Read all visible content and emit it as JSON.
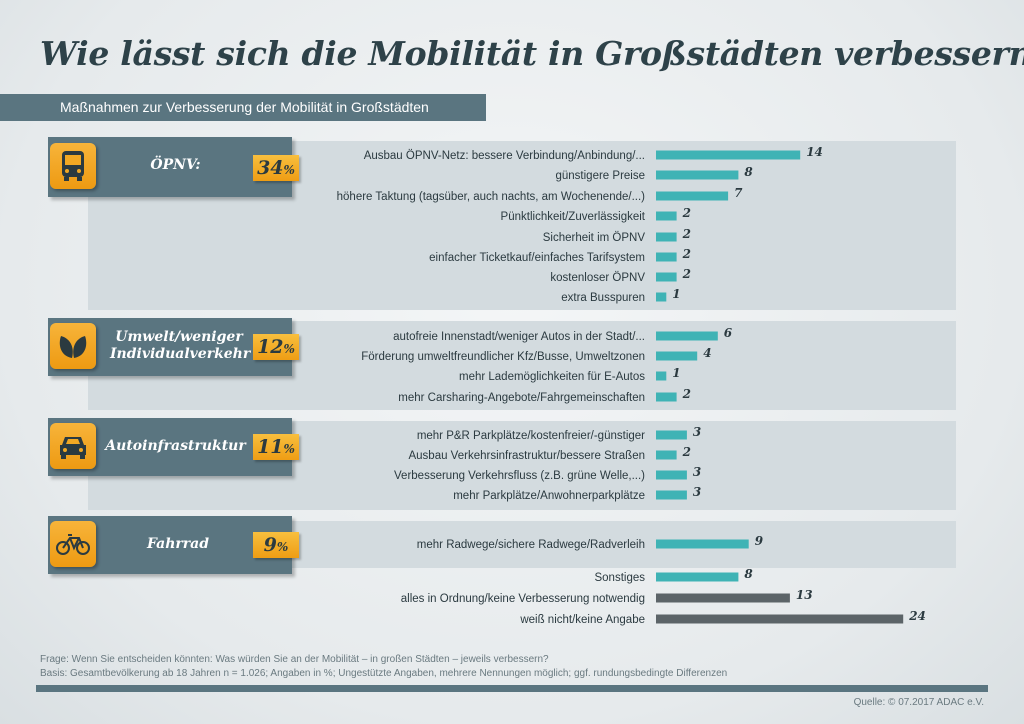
{
  "title": "Wie lässt sich die Mobilität in Großstädten verbessern?",
  "subtitle": "Maßnahmen zur Verbesserung der Mobilität in Großstädten",
  "categories": [
    {
      "label": "ÖPNV:",
      "percent": "34",
      "icon": "bus-icon"
    },
    {
      "label": "Umwelt/weniger Individualverkehr",
      "percent": "12",
      "icon": "leaves-icon"
    },
    {
      "label": "Autoinfrastruktur",
      "percent": "11",
      "icon": "car-icon"
    },
    {
      "label": "Fahrrad",
      "percent": "9",
      "icon": "bicycle-icon"
    }
  ],
  "percent_sign": "%",
  "colors": {
    "teal_bar": "#3fb3b5",
    "gray_bar": "#5c6468",
    "band": "#5a7580",
    "badge": "#f1a21d",
    "panel": "#d3dbdf"
  },
  "chart_data": {
    "type": "bar",
    "orientation": "horizontal",
    "title": "Wie lässt sich die Mobilität in Großstädten verbessern?",
    "subtitle": "Maßnahmen zur Verbesserung der Mobilität in Großstädten",
    "unit": "%",
    "bars": [
      {
        "label": "Ausbau ÖPNV-Netz: bessere Verbindung/Anbindung/...",
        "value": 14,
        "group": 0,
        "color": "teal"
      },
      {
        "label": "günstigere Preise",
        "value": 8,
        "group": 0,
        "color": "teal"
      },
      {
        "label": "höhere Taktung (tagsüber, auch nachts, am Wochenende/...)",
        "value": 7,
        "group": 0,
        "color": "teal"
      },
      {
        "label": "Pünktlichkeit/Zuverlässigkeit",
        "value": 2,
        "group": 0,
        "color": "teal"
      },
      {
        "label": "Sicherheit im ÖPNV",
        "value": 2,
        "group": 0,
        "color": "teal"
      },
      {
        "label": "einfacher Ticketkauf/einfaches Tarifsystem",
        "value": 2,
        "group": 0,
        "color": "teal"
      },
      {
        "label": "kostenloser ÖPNV",
        "value": 2,
        "group": 0,
        "color": "teal"
      },
      {
        "label": "extra Busspuren",
        "value": 1,
        "group": 0,
        "color": "teal"
      },
      {
        "label": "autofreie Innenstadt/weniger Autos in der Stadt/...",
        "value": 6,
        "group": 1,
        "color": "teal"
      },
      {
        "label": "Förderung umweltfreundlicher Kfz/Busse, Umweltzonen",
        "value": 4,
        "group": 1,
        "color": "teal"
      },
      {
        "label": "mehr Lademöglichkeiten für E-Autos",
        "value": 1,
        "group": 1,
        "color": "teal"
      },
      {
        "label": "mehr Carsharing-Angebote/Fahrgemeinschaften",
        "value": 2,
        "group": 1,
        "color": "teal"
      },
      {
        "label": "mehr P&R Parkplätze/kostenfreier/-günstiger",
        "value": 3,
        "group": 2,
        "color": "teal"
      },
      {
        "label": "Ausbau Verkehrsinfrastruktur/bessere Straßen",
        "value": 2,
        "group": 2,
        "color": "teal"
      },
      {
        "label": "Verbesserung Verkehrsfluss (z.B. grüne Welle,...)",
        "value": 3,
        "group": 2,
        "color": "teal"
      },
      {
        "label": "mehr Parkplätze/Anwohnerparkplätze",
        "value": 3,
        "group": 2,
        "color": "teal"
      },
      {
        "label": "mehr Radwege/sichere Radwege/Radverleih",
        "value": 9,
        "group": 3,
        "color": "teal"
      },
      {
        "label": "Sonstiges",
        "value": 8,
        "group": null,
        "color": "teal"
      },
      {
        "label": "alles in Ordnung/keine Verbesserung notwendig",
        "value": 13,
        "group": null,
        "color": "gray"
      },
      {
        "label": "weiß nicht/keine Angabe",
        "value": 24,
        "group": null,
        "color": "gray"
      }
    ]
  },
  "footnotes": {
    "question": "Frage: Wenn Sie entscheiden könnten: Was würden Sie an der Mobilität – in großen Städten – jeweils verbessern?",
    "basis": "Basis: Gesamtbevölkerung ab 18 Jahren n = 1.026; Angaben in %; Ungestützte Angaben, mehrere Nennungen möglich; ggf. rundungsbedingte Differenzen",
    "source": "Quelle: © 07.2017 ADAC e.V."
  }
}
